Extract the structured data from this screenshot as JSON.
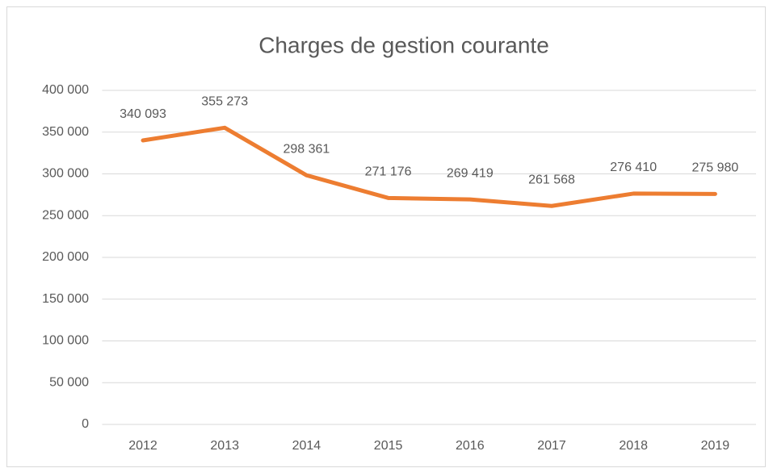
{
  "chart_data": {
    "type": "line",
    "title": "Charges de gestion courante",
    "categories": [
      "2012",
      "2013",
      "2014",
      "2015",
      "2016",
      "2017",
      "2018",
      "2019"
    ],
    "values": [
      340093,
      355273,
      298361,
      271176,
      269419,
      261568,
      276410,
      275980
    ],
    "value_labels": [
      "340 093",
      "355 273",
      "298 361",
      "271 176",
      "269 419",
      "261 568",
      "276 410",
      "275 980"
    ],
    "color": "#ed7d31",
    "ylim": [
      0,
      400000
    ],
    "yticks": [
      0,
      {
        "value": 50000,
        "label": "50 000"
      },
      {
        "value": 100000,
        "label": "100 000"
      },
      {
        "value": 150000,
        "label": "150 000"
      },
      {
        "value": 200000,
        "label": "200 000"
      },
      {
        "value": 250000,
        "label": "250 000"
      },
      {
        "value": 300000,
        "label": "300 000"
      },
      {
        "value": 350000,
        "label": "350 000"
      },
      {
        "value": 400000,
        "label": "400 000"
      }
    ],
    "grid": true
  }
}
